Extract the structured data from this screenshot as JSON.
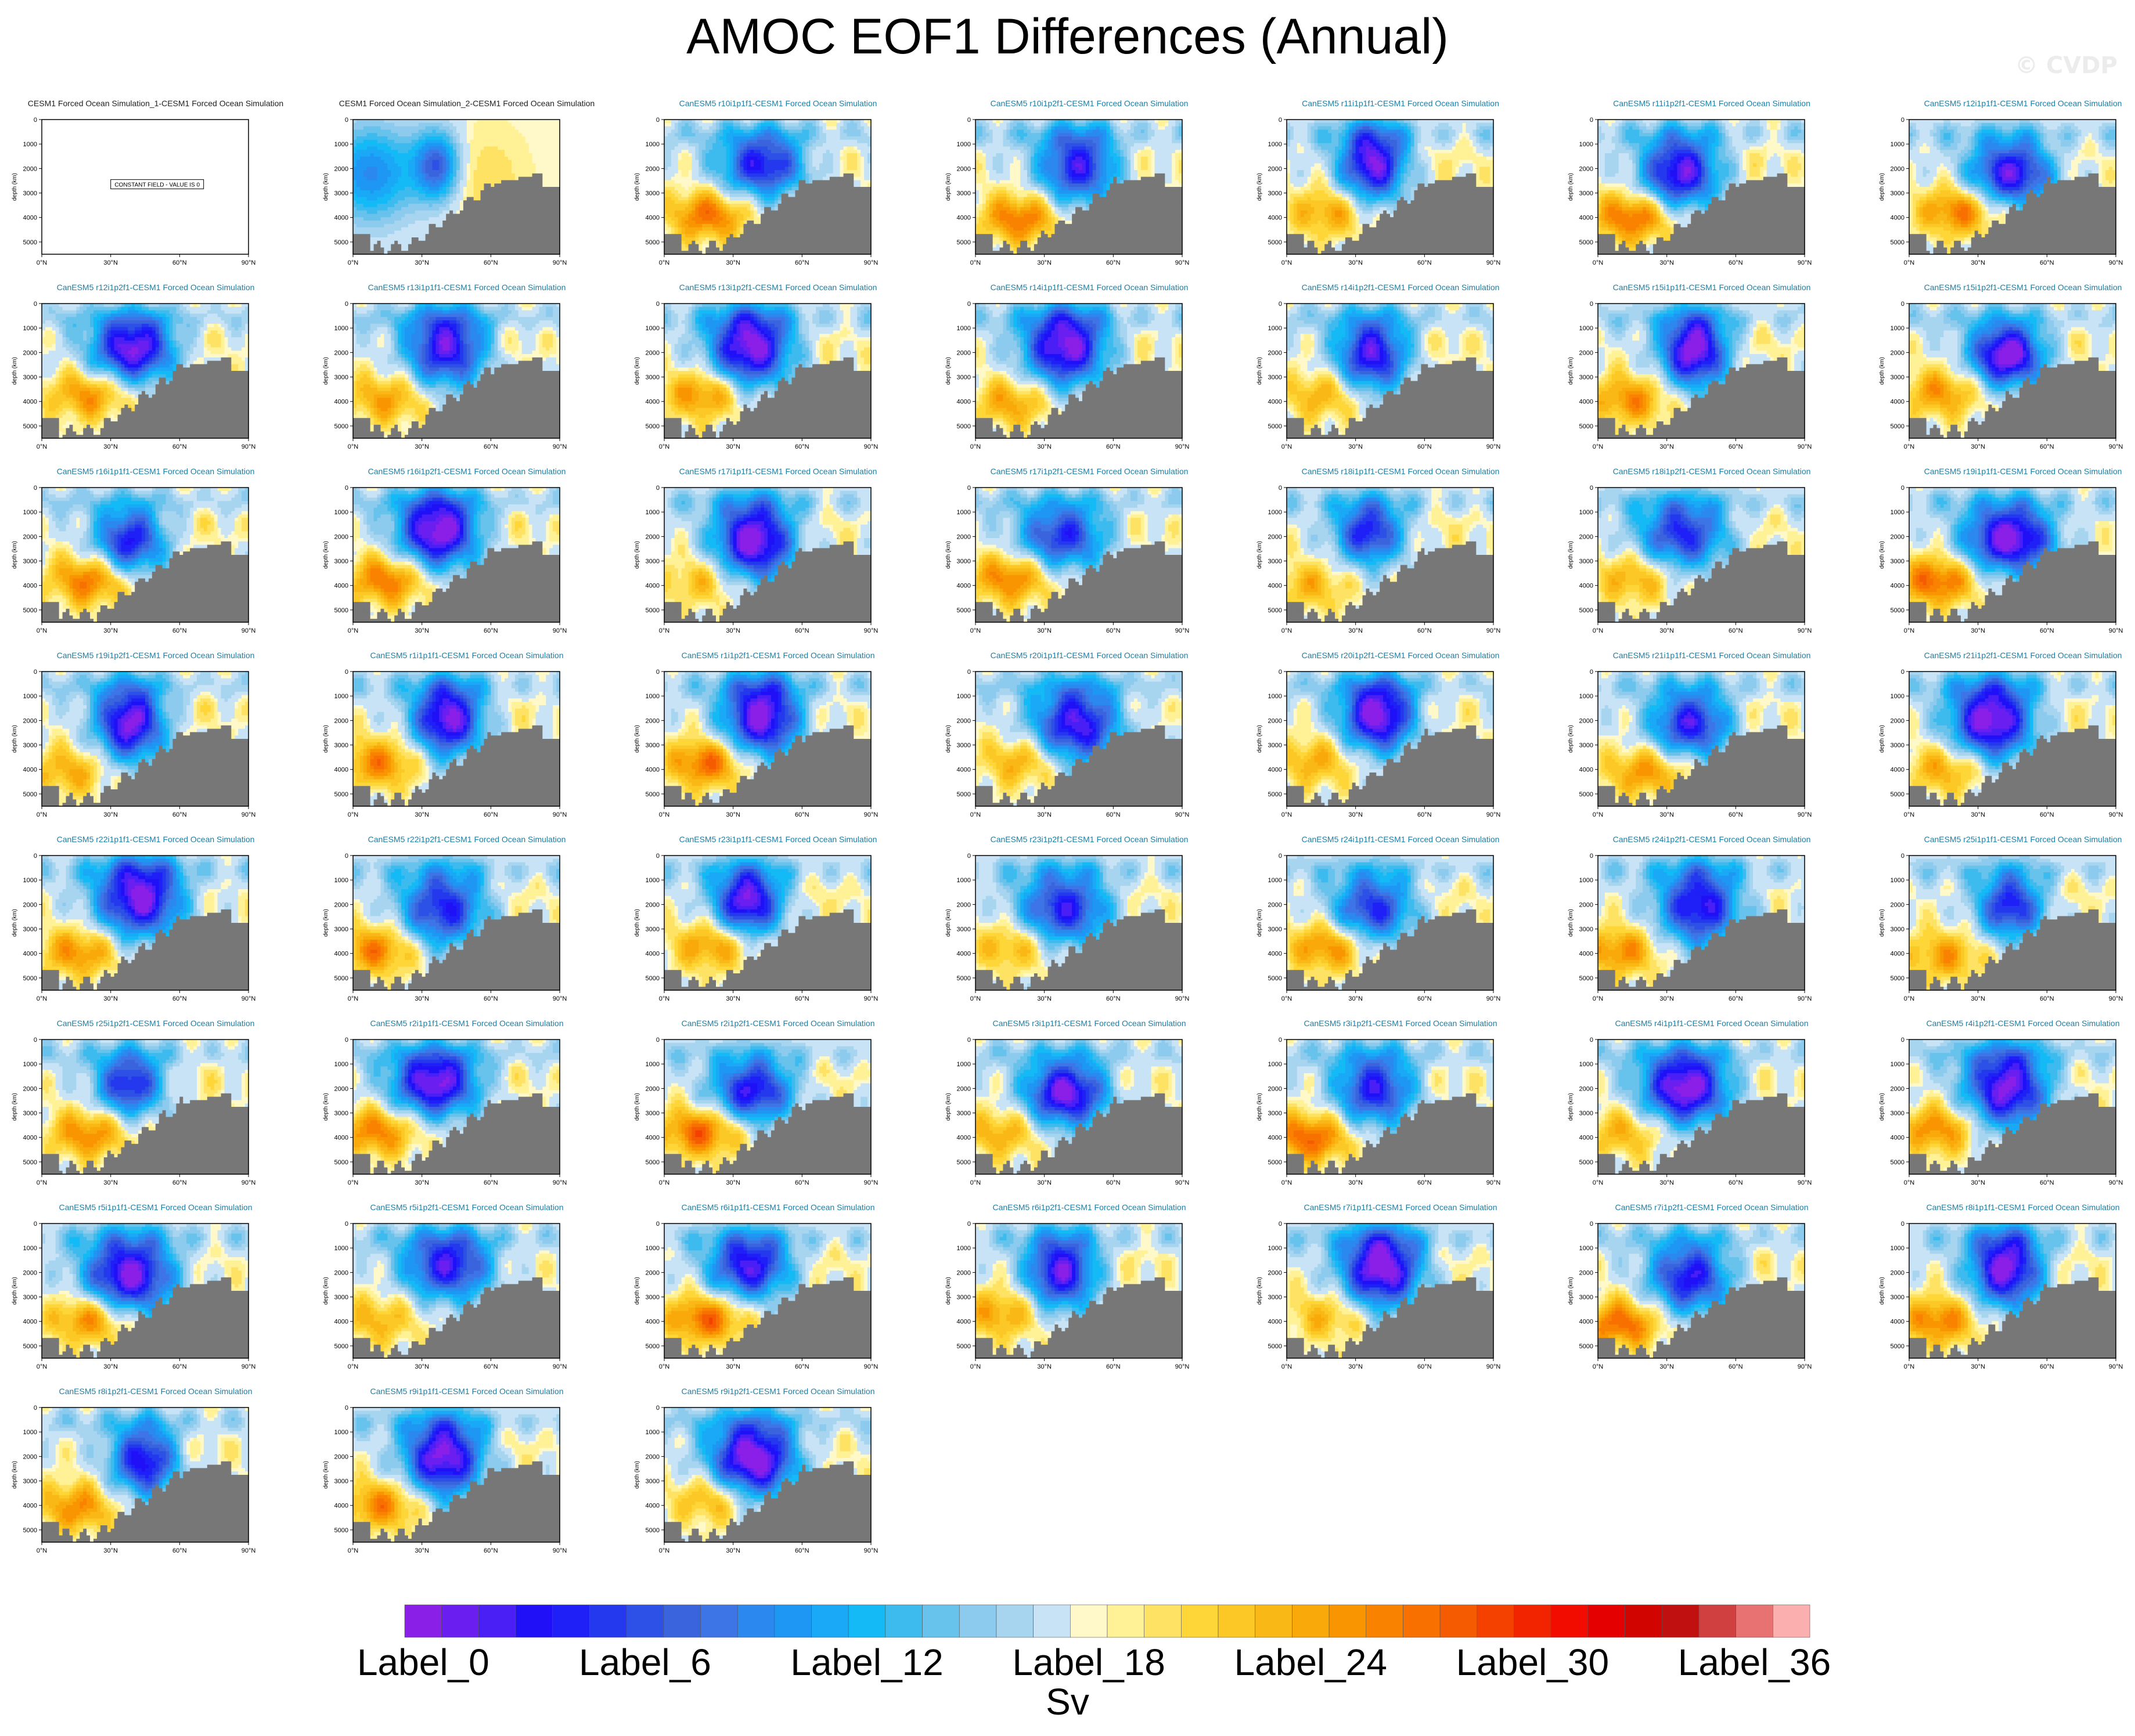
{
  "title": "AMOC EOF1 Differences (Annual)",
  "watermark": "© CVDP",
  "units": "Sv",
  "colors": {
    "land": "#777777",
    "title_blue": "#1a7fa6",
    "palette": [
      "#8a1fe8",
      "#6a1ff0",
      "#4a1ff5",
      "#1f10f7",
      "#1f1ff7",
      "#2438ee",
      "#2d50e6",
      "#3a64dd",
      "#3d75e6",
      "#2a88ef",
      "#1e96f4",
      "#19a9f6",
      "#13baf6",
      "#3dbbee",
      "#67c2ec",
      "#8ccbee",
      "#a7d5ef",
      "#c7e3f5",
      "#fff8c8",
      "#fff196",
      "#fde264",
      "#fed638",
      "#fcc826",
      "#fab816",
      "#f9a90a",
      "#f99500",
      "#f98300",
      "#f77000",
      "#f55b00",
      "#f44100",
      "#f22400",
      "#f20c00",
      "#e40000",
      "#d20400",
      "#c01010",
      "#d14040",
      "#e87272",
      "#fcafaf"
    ]
  },
  "chart_data": {
    "type": "heatmap",
    "title": "AMOC EOF1 Differences (Annual)",
    "units": "Sv",
    "colorbar": {
      "labels": [
        "Label_0",
        "Label_6",
        "Label_12",
        "Label_18",
        "Label_24",
        "Label_30",
        "Label_36"
      ],
      "label_indices": [
        0,
        6,
        12,
        18,
        24,
        30,
        36
      ],
      "n_colors": 38
    },
    "axes": {
      "ylabel": "depth (km)",
      "yticks": [
        "0",
        "1000",
        "2000",
        "3000",
        "4000",
        "5000"
      ],
      "ylim": [
        0,
        5500
      ],
      "xticks": [
        "0°N",
        "30°N",
        "60°N",
        "90°N"
      ],
      "xlim": [
        0,
        90
      ]
    },
    "constant_field_note": "CONSTANT FIELD - VALUE IS 0",
    "panels": [
      {
        "title": "CESM1 Forced Ocean Simulation_1-CESM1 Forced Ocean Simulation",
        "variant": "constant",
        "seed": 1
      },
      {
        "title": "CESM1 Forced Ocean Simulation_2-CESM1 Forced Ocean Simulation",
        "variant": "ocean2",
        "seed": 2
      },
      {
        "title": "CanESM5 r10i1p1f1-CESM1 Forced Ocean Simulation",
        "seed": 3
      },
      {
        "title": "CanESM5 r10i1p2f1-CESM1 Forced Ocean Simulation",
        "seed": 4
      },
      {
        "title": "CanESM5 r11i1p1f1-CESM1 Forced Ocean Simulation",
        "seed": 5
      },
      {
        "title": "CanESM5 r11i1p2f1-CESM1 Forced Ocean Simulation",
        "seed": 6
      },
      {
        "title": "CanESM5 r12i1p1f1-CESM1 Forced Ocean Simulation",
        "seed": 7
      },
      {
        "title": "CanESM5 r12i1p2f1-CESM1 Forced Ocean Simulation",
        "seed": 8
      },
      {
        "title": "CanESM5 r13i1p1f1-CESM1 Forced Ocean Simulation",
        "seed": 9
      },
      {
        "title": "CanESM5 r13i1p2f1-CESM1 Forced Ocean Simulation",
        "seed": 10
      },
      {
        "title": "CanESM5 r14i1p1f1-CESM1 Forced Ocean Simulation",
        "seed": 11
      },
      {
        "title": "CanESM5 r14i1p2f1-CESM1 Forced Ocean Simulation",
        "seed": 12
      },
      {
        "title": "CanESM5 r15i1p1f1-CESM1 Forced Ocean Simulation",
        "seed": 13
      },
      {
        "title": "CanESM5 r15i1p2f1-CESM1 Forced Ocean Simulation",
        "seed": 14
      },
      {
        "title": "CanESM5 r16i1p1f1-CESM1 Forced Ocean Simulation",
        "seed": 15
      },
      {
        "title": "CanESM5 r16i1p2f1-CESM1 Forced Ocean Simulation",
        "seed": 16
      },
      {
        "title": "CanESM5 r17i1p1f1-CESM1 Forced Ocean Simulation",
        "seed": 17
      },
      {
        "title": "CanESM5 r17i1p2f1-CESM1 Forced Ocean Simulation",
        "seed": 18
      },
      {
        "title": "CanESM5 r18i1p1f1-CESM1 Forced Ocean Simulation",
        "seed": 19
      },
      {
        "title": "CanESM5 r18i1p2f1-CESM1 Forced Ocean Simulation",
        "seed": 20
      },
      {
        "title": "CanESM5 r19i1p1f1-CESM1 Forced Ocean Simulation",
        "seed": 21
      },
      {
        "title": "CanESM5 r19i1p2f1-CESM1 Forced Ocean Simulation",
        "seed": 22
      },
      {
        "title": "CanESM5 r1i1p1f1-CESM1 Forced Ocean Simulation",
        "seed": 23
      },
      {
        "title": "CanESM5 r1i1p2f1-CESM1 Forced Ocean Simulation",
        "seed": 24
      },
      {
        "title": "CanESM5 r20i1p1f1-CESM1 Forced Ocean Simulation",
        "seed": 25
      },
      {
        "title": "CanESM5 r20i1p2f1-CESM1 Forced Ocean Simulation",
        "seed": 26
      },
      {
        "title": "CanESM5 r21i1p1f1-CESM1 Forced Ocean Simulation",
        "seed": 27
      },
      {
        "title": "CanESM5 r21i1p2f1-CESM1 Forced Ocean Simulation",
        "seed": 28
      },
      {
        "title": "CanESM5 r22i1p1f1-CESM1 Forced Ocean Simulation",
        "seed": 29
      },
      {
        "title": "CanESM5 r22i1p2f1-CESM1 Forced Ocean Simulation",
        "seed": 30
      },
      {
        "title": "CanESM5 r23i1p1f1-CESM1 Forced Ocean Simulation",
        "seed": 31
      },
      {
        "title": "CanESM5 r23i1p2f1-CESM1 Forced Ocean Simulation",
        "seed": 32
      },
      {
        "title": "CanESM5 r24i1p1f1-CESM1 Forced Ocean Simulation",
        "seed": 33
      },
      {
        "title": "CanESM5 r24i1p2f1-CESM1 Forced Ocean Simulation",
        "seed": 34
      },
      {
        "title": "CanESM5 r25i1p1f1-CESM1 Forced Ocean Simulation",
        "seed": 35
      },
      {
        "title": "CanESM5 r25i1p2f1-CESM1 Forced Ocean Simulation",
        "seed": 36
      },
      {
        "title": "CanESM5 r2i1p1f1-CESM1 Forced Ocean Simulation",
        "seed": 37
      },
      {
        "title": "CanESM5 r2i1p2f1-CESM1 Forced Ocean Simulation",
        "seed": 38
      },
      {
        "title": "CanESM5 r3i1p1f1-CESM1 Forced Ocean Simulation",
        "seed": 39
      },
      {
        "title": "CanESM5 r3i1p2f1-CESM1 Forced Ocean Simulation",
        "seed": 40
      },
      {
        "title": "CanESM5 r4i1p1f1-CESM1 Forced Ocean Simulation",
        "seed": 41
      },
      {
        "title": "CanESM5 r4i1p2f1-CESM1 Forced Ocean Simulation",
        "seed": 42
      },
      {
        "title": "CanESM5 r5i1p1f1-CESM1 Forced Ocean Simulation",
        "seed": 43
      },
      {
        "title": "CanESM5 r5i1p2f1-CESM1 Forced Ocean Simulation",
        "seed": 44
      },
      {
        "title": "CanESM5 r6i1p1f1-CESM1 Forced Ocean Simulation",
        "seed": 45
      },
      {
        "title": "CanESM5 r6i1p2f1-CESM1 Forced Ocean Simulation",
        "seed": 46
      },
      {
        "title": "CanESM5 r7i1p1f1-CESM1 Forced Ocean Simulation",
        "seed": 47
      },
      {
        "title": "CanESM5 r7i1p2f1-CESM1 Forced Ocean Simulation",
        "seed": 48
      },
      {
        "title": "CanESM5 r8i1p1f1-CESM1 Forced Ocean Simulation",
        "seed": 49
      },
      {
        "title": "CanESM5 r8i1p2f1-CESM1 Forced Ocean Simulation",
        "seed": 50
      },
      {
        "title": "CanESM5 r9i1p1f1-CESM1 Forced Ocean Simulation",
        "seed": 51
      },
      {
        "title": "CanESM5 r9i1p2f1-CESM1 Forced Ocean Simulation",
        "seed": 52
      }
    ]
  }
}
